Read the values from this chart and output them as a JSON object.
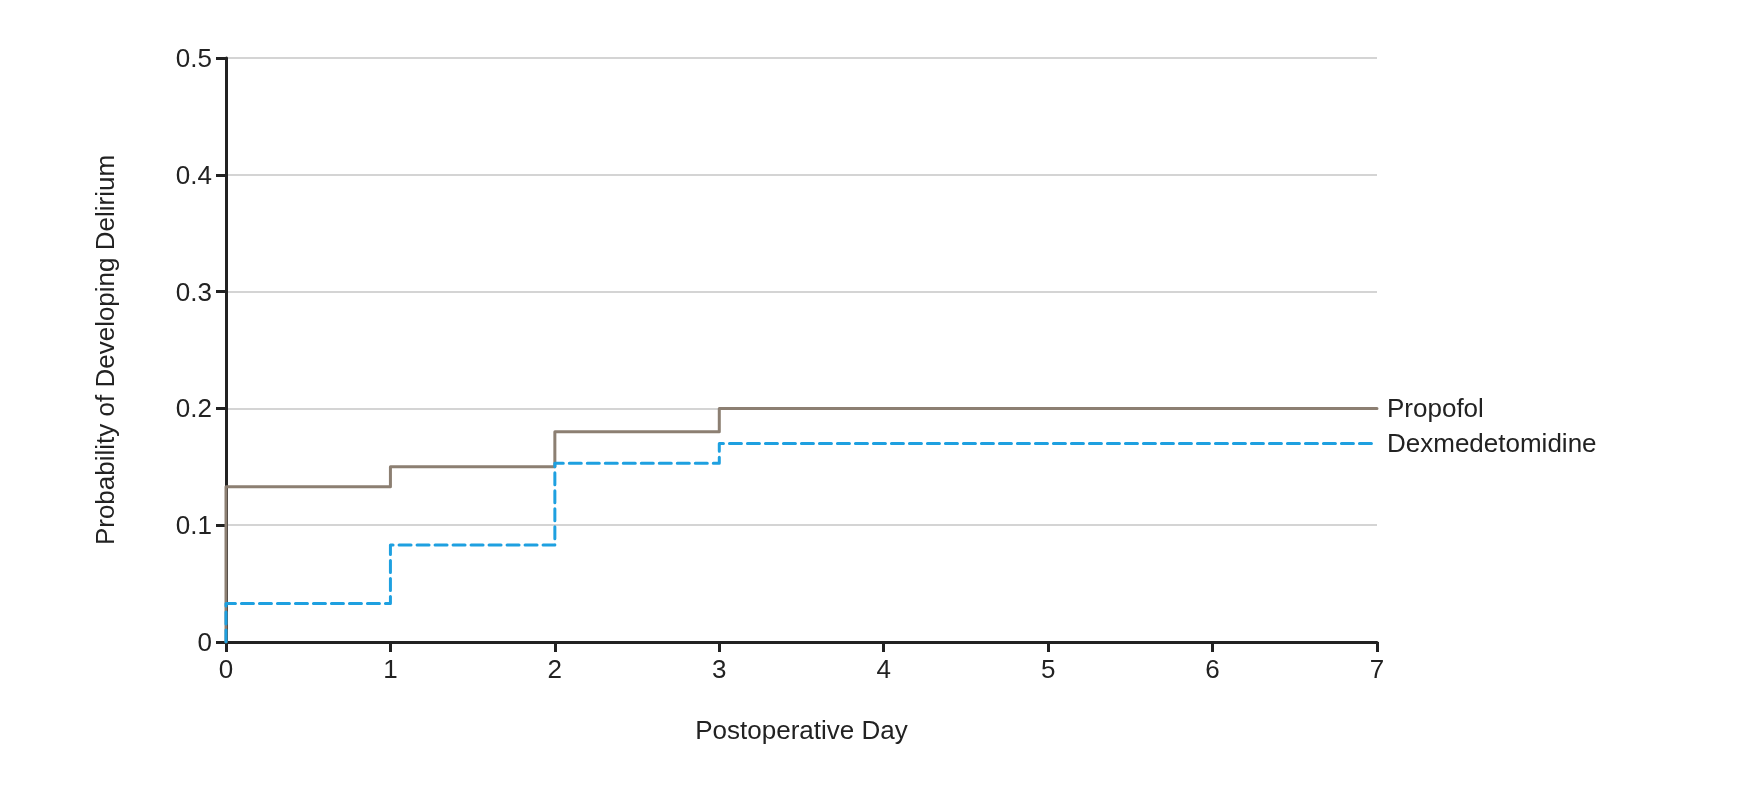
{
  "chart_data": {
    "type": "step",
    "xlabel": "Postoperative Day",
    "ylabel": "Probability of Developing Delirium",
    "xlim": [
      0,
      7
    ],
    "xticks": [
      0,
      1,
      2,
      3,
      4,
      5,
      6,
      7
    ],
    "ylim": [
      0,
      0.5
    ],
    "yticks": [
      0,
      0.1,
      0.2,
      0.3,
      0.4,
      0.5
    ],
    "grid": "y",
    "series": [
      {
        "name": "Propofol",
        "color": "#8c7f72",
        "line_style": "solid",
        "x": [
          0,
          0,
          1,
          2,
          3,
          7
        ],
        "values": [
          0,
          0.133,
          0.15,
          0.18,
          0.2,
          0.2
        ]
      },
      {
        "name": "Dexmedetomidine",
        "color": "#1ea0e0",
        "line_style": "dashed",
        "x": [
          0,
          0,
          1,
          2,
          3,
          7
        ],
        "values": [
          0,
          0.033,
          0.083,
          0.153,
          0.17,
          0.17
        ]
      }
    ]
  }
}
